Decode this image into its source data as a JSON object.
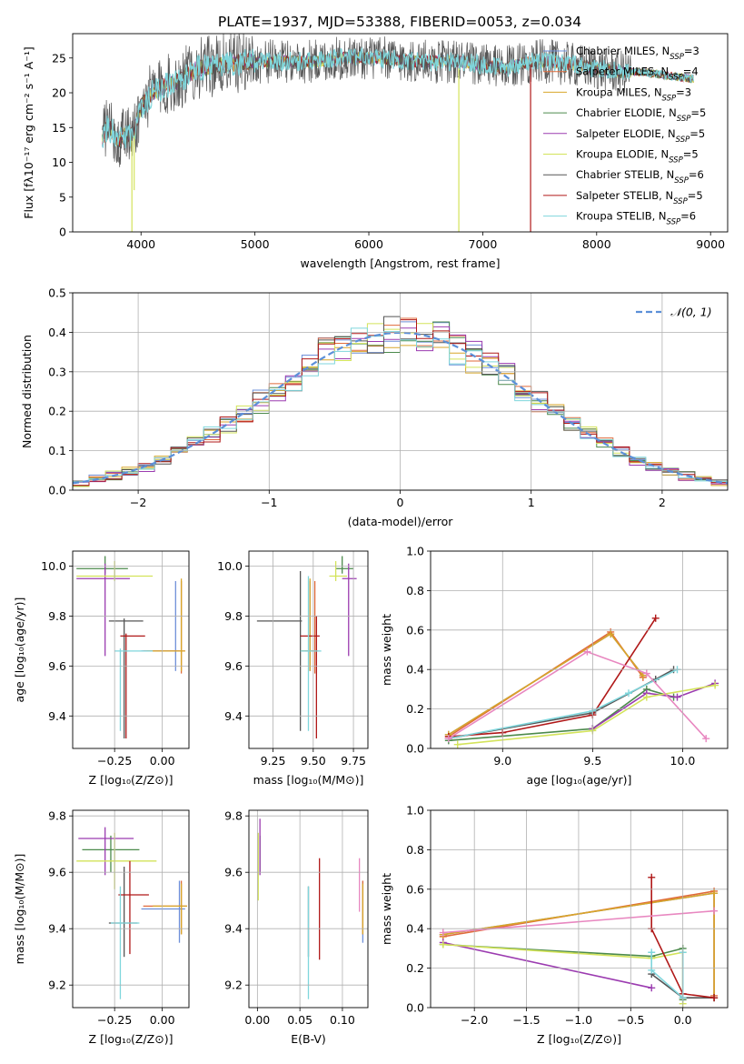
{
  "figure": {
    "title": "PLATE=1937, MJD=53388, FIBERID=0053, z=0.034"
  },
  "colors": {
    "Chabrier MILES": "#6e8fd8",
    "Salpeter MILES": "#e06a3a",
    "Kroupa MILES": "#d8a62a",
    "Chabrier ELODIE": "#4c8a4c",
    "Salpeter ELODIE": "#9b3bb0",
    "Kroupa ELODIE": "#d3e35a",
    "Chabrier STELIB": "#555555",
    "Salpeter STELIB": "#b01818",
    "Kroupa STELIB": "#7fd6dc",
    "gauss": "#5b8fd8",
    "grid": "#b0b0b0",
    "misc": "#e887c0"
  },
  "chart_data": [
    {
      "id": "spectrum",
      "type": "line",
      "title": "PLATE=1937, MJD=53388, FIBERID=0053, z=0.034",
      "xlabel": "wavelength [Angstrom, rest frame]",
      "ylabel": "Flux [fλ10⁻¹⁷ erg cm⁻² s⁻¹ A⁻¹]",
      "xlim": [
        3400,
        9150
      ],
      "ylim": [
        0,
        28.5
      ],
      "xticks": [
        4000,
        5000,
        6000,
        7000,
        8000,
        9000
      ],
      "yticks": [
        0,
        5,
        10,
        15,
        20,
        25
      ],
      "grid": false,
      "legend_position": "upper right",
      "series": [
        {
          "name": "Chabrier MILES, N_SSP=3"
        },
        {
          "name": "Salpeter MILES, N_SSP=4"
        },
        {
          "name": "Kroupa MILES, N_SSP=3"
        },
        {
          "name": "Chabrier ELODIE, N_SSP=5"
        },
        {
          "name": "Salpeter ELODIE, N_SSP=5"
        },
        {
          "name": "Kroupa ELODIE, N_SSP=5"
        },
        {
          "name": "Chabrier STELIB, N_SSP=6"
        },
        {
          "name": "Salpeter STELIB, N_SSP=5"
        },
        {
          "name": "Kroupa STELIB, N_SSP=6"
        }
      ],
      "continuum": {
        "x": [
          3660,
          3700,
          3750,
          3800,
          3850,
          3900,
          3950,
          4000,
          4100,
          4200,
          4300,
          4400,
          4500,
          4700,
          4900,
          5100,
          5300,
          5500,
          5800,
          6100,
          6400,
          6600,
          6800,
          7000,
          7200,
          7400,
          7600,
          7800,
          8000,
          8200,
          8400,
          8600,
          8850
        ],
        "y": [
          13.5,
          15,
          14.5,
          13,
          14,
          13.5,
          15,
          18,
          20,
          21,
          21.5,
          22.5,
          23.5,
          24,
          24.5,
          24.5,
          24.5,
          24.5,
          25,
          25,
          24.5,
          24.5,
          24.5,
          24,
          23.5,
          24.5,
          24.5,
          24,
          23.5,
          23,
          23,
          22.5,
          22
        ]
      },
      "spikes": [
        {
          "name": "Kroupa ELODIE",
          "x": 3920,
          "y": 0
        },
        {
          "name": "Kroupa ELODIE",
          "x": 6790,
          "y": 0
        },
        {
          "name": "Salpeter STELIB",
          "x": 7420,
          "y": 0
        },
        {
          "name": "Kroupa ELODIE",
          "x": 3940,
          "y": 6
        }
      ]
    },
    {
      "id": "residual-hist",
      "type": "step",
      "xlabel": "(data-model)/error",
      "ylabel": "Normed distribution",
      "xlim": [
        -2.5,
        2.5
      ],
      "ylim": [
        0,
        0.5
      ],
      "xticks": [
        -2,
        -1,
        0,
        1,
        2
      ],
      "yticks": [
        0.0,
        0.1,
        0.2,
        0.3,
        0.4,
        0.5
      ],
      "grid": true,
      "legend": [
        {
          "name": "𝒩(0, 1)",
          "style": "dashed"
        }
      ],
      "legend_position": "upper right",
      "bin_width": 0.125,
      "bin_start": -2.5
    },
    {
      "id": "age-vs-z",
      "type": "errorbar",
      "xlabel": "Z [log₁₀(Z/Z⊙)]",
      "ylabel": "age  [log₁₀(age/yr)]",
      "xlim": [
        -0.47,
        0.14
      ],
      "ylim": [
        9.27,
        10.06
      ],
      "xticks": [
        -0.25,
        0.0
      ],
      "yticks": [
        9.4,
        9.6,
        9.8,
        10.0
      ],
      "grid": true,
      "points": [
        {
          "name": "Chabrier MILES",
          "x": 0.07,
          "y": 9.66,
          "xerr": [
            0.18,
            0.02
          ],
          "yerr": [
            0.08,
            0.28
          ]
        },
        {
          "name": "Salpeter MILES",
          "x": 0.1,
          "y": 9.66,
          "xerr": [
            0.2,
            0.02
          ],
          "yerr": [
            0.09,
            0.28
          ]
        },
        {
          "name": "Kroupa MILES",
          "x": 0.1,
          "y": 9.66,
          "xerr": [
            0.18,
            0.02
          ],
          "yerr": [
            0.08,
            0.29
          ]
        },
        {
          "name": "Chabrier ELODIE",
          "x": -0.3,
          "y": 9.99,
          "xerr": [
            0.15,
            0.12
          ],
          "yerr": [
            0.02,
            0.05
          ]
        },
        {
          "name": "Salpeter ELODIE",
          "x": -0.3,
          "y": 9.95,
          "xerr": [
            0.15,
            0.13
          ],
          "yerr": [
            0.31,
            0.06
          ]
        },
        {
          "name": "Kroupa ELODIE",
          "x": -0.25,
          "y": 9.96,
          "xerr": [
            0.2,
            0.2
          ],
          "yerr": [
            0.02,
            0.06
          ]
        },
        {
          "name": "Chabrier STELIB",
          "x": -0.2,
          "y": 9.78,
          "xerr": [
            0.08,
            0.1
          ],
          "yerr": [
            0.47,
            0.01
          ]
        },
        {
          "name": "Salpeter STELIB",
          "x": -0.19,
          "y": 9.72,
          "xerr": [
            0.03,
            0.1
          ],
          "yerr": [
            0.41,
            0.01
          ]
        },
        {
          "name": "Kroupa STELIB",
          "x": -0.22,
          "y": 9.66,
          "xerr": [
            0.03,
            0.17
          ],
          "yerr": [
            0.32,
            0.01
          ]
        }
      ]
    },
    {
      "id": "age-vs-mass",
      "type": "errorbar",
      "xlabel": "mass [log₁₀(M/M⊙)]",
      "xlim": [
        9.1,
        9.84
      ],
      "ylim": [
        9.27,
        10.06
      ],
      "xticks": [
        9.25,
        9.5,
        9.75
      ],
      "yticks": [
        9.4,
        9.6,
        9.8,
        10.0
      ],
      "grid": true,
      "points": [
        {
          "name": "Chabrier MILES",
          "x": 9.48,
          "y": 9.66,
          "xerr": [
            0.06,
            0.02
          ],
          "yerr": [
            0.08,
            0.28
          ]
        },
        {
          "name": "Salpeter MILES",
          "x": 9.51,
          "y": 9.66,
          "xerr": [
            0.06,
            0.02
          ],
          "yerr": [
            0.09,
            0.28
          ]
        },
        {
          "name": "Kroupa MILES",
          "x": 9.48,
          "y": 9.66,
          "xerr": [
            0.06,
            0.02
          ],
          "yerr": [
            0.08,
            0.29
          ]
        },
        {
          "name": "Chabrier ELODIE",
          "x": 9.68,
          "y": 9.99,
          "xerr": [
            0.04,
            0.07
          ],
          "yerr": [
            0.02,
            0.05
          ]
        },
        {
          "name": "Salpeter ELODIE",
          "x": 9.72,
          "y": 9.95,
          "xerr": [
            0.04,
            0.05
          ],
          "yerr": [
            0.31,
            0.06
          ]
        },
        {
          "name": "Kroupa ELODIE",
          "x": 9.64,
          "y": 9.96,
          "xerr": [
            0.04,
            0.07
          ],
          "yerr": [
            0.02,
            0.06
          ]
        },
        {
          "name": "Chabrier STELIB",
          "x": 9.42,
          "y": 9.78,
          "xerr": [
            0.27,
            0.01
          ],
          "yerr": [
            0.44,
            0.2
          ]
        },
        {
          "name": "Salpeter STELIB",
          "x": 9.52,
          "y": 9.72,
          "xerr": [
            0.1,
            0.02
          ],
          "yerr": [
            0.41,
            0.08
          ]
        },
        {
          "name": "Kroupa STELIB",
          "x": 9.47,
          "y": 9.66,
          "xerr": [
            0.05,
            0.08
          ],
          "yerr": [
            0.32,
            0.3
          ]
        }
      ]
    },
    {
      "id": "massweight-vs-age",
      "type": "line",
      "xlabel": "age  [log₁₀(age/yr)]",
      "ylabel": "mass weight",
      "xlim": [
        8.6,
        10.25
      ],
      "ylim": [
        0,
        1
      ],
      "xticks": [
        9.0,
        9.5,
        10.0
      ],
      "yticks": [
        0.0,
        0.2,
        0.4,
        0.6,
        0.8,
        1.0
      ],
      "grid": true,
      "series": [
        {
          "name": "Chabrier MILES",
          "x": [
            8.7,
            9.6,
            9.78
          ],
          "y": [
            0.07,
            0.58,
            0.37
          ]
        },
        {
          "name": "Salpeter MILES",
          "x": [
            8.7,
            9.6,
            9.78
          ],
          "y": [
            0.06,
            0.59,
            0.36
          ]
        },
        {
          "name": "Kroupa MILES",
          "x": [
            8.7,
            9.6,
            9.78
          ],
          "y": [
            0.07,
            0.58,
            0.37
          ]
        },
        {
          "name": "Chabrier ELODIE",
          "x": [
            8.7,
            9.5,
            9.8,
            9.95
          ],
          "y": [
            0.04,
            0.1,
            0.3,
            0.26
          ]
        },
        {
          "name": "Salpeter ELODIE",
          "x": [
            9.5,
            9.8,
            9.97,
            10.18
          ],
          "y": [
            0.1,
            0.28,
            0.26,
            0.33
          ]
        },
        {
          "name": "Kroupa ELODIE",
          "x": [
            8.75,
            9.5,
            9.8,
            10.18
          ],
          "y": [
            0.02,
            0.09,
            0.26,
            0.32
          ]
        },
        {
          "name": "Chabrier STELIB",
          "x": [
            8.7,
            9.5,
            9.85,
            9.95
          ],
          "y": [
            0.05,
            0.18,
            0.35,
            0.4
          ]
        },
        {
          "name": "Salpeter STELIB",
          "x": [
            8.7,
            9.0,
            9.5,
            9.85
          ],
          "y": [
            0.06,
            0.08,
            0.17,
            0.66
          ]
        },
        {
          "name": "Kroupa STELIB",
          "x": [
            8.7,
            9.5,
            9.7,
            9.97
          ],
          "y": [
            0.05,
            0.19,
            0.28,
            0.4
          ]
        },
        {
          "name": "misc",
          "x": [
            8.7,
            9.47,
            9.8,
            10.13
          ],
          "y": [
            0.05,
            0.49,
            0.38,
            0.05
          ]
        }
      ]
    },
    {
      "id": "mass-vs-z",
      "type": "errorbar",
      "xlabel": "Z [log₁₀(Z/Z⊙)]",
      "ylabel": "mass [log₁₀(M/M⊙)]",
      "xlim": [
        -0.47,
        0.14
      ],
      "ylim": [
        9.12,
        9.82
      ],
      "xticks": [
        -0.25,
        0.0
      ],
      "yticks": [
        9.2,
        9.4,
        9.6,
        9.8
      ],
      "grid": true,
      "points": [
        {
          "name": "Chabrier MILES",
          "x": 0.09,
          "y": 9.47,
          "xerr": [
            0.2,
            0.03
          ],
          "yerr": [
            0.12,
            0.1
          ]
        },
        {
          "name": "Salpeter MILES",
          "x": 0.1,
          "y": 9.48,
          "xerr": [
            0.2,
            0.03
          ],
          "yerr": [
            0.1,
            0.09
          ]
        },
        {
          "name": "Kroupa MILES",
          "x": 0.1,
          "y": 9.48,
          "xerr": [
            0.15,
            0.03
          ],
          "yerr": [
            0.1,
            0.08
          ]
        },
        {
          "name": "Chabrier ELODIE",
          "x": -0.27,
          "y": 9.68,
          "xerr": [
            0.15,
            0.15
          ],
          "yerr": [
            0.08,
            0.05
          ]
        },
        {
          "name": "Salpeter ELODIE",
          "x": -0.3,
          "y": 9.72,
          "xerr": [
            0.14,
            0.15
          ],
          "yerr": [
            0.13,
            0.04
          ]
        },
        {
          "name": "Kroupa ELODIE",
          "x": -0.25,
          "y": 9.64,
          "xerr": [
            0.2,
            0.22
          ],
          "yerr": [
            0.1,
            0.1
          ]
        },
        {
          "name": "Chabrier STELIB",
          "x": -0.2,
          "y": 9.42,
          "xerr": [
            0.08,
            0.07
          ],
          "yerr": [
            0.12,
            0.2
          ]
        },
        {
          "name": "Salpeter STELIB",
          "x": -0.17,
          "y": 9.52,
          "xerr": [
            0.06,
            0.1
          ],
          "yerr": [
            0.21,
            0.12
          ]
        },
        {
          "name": "Kroupa STELIB",
          "x": -0.22,
          "y": 9.42,
          "xerr": [
            0.05,
            0.1
          ],
          "yerr": [
            0.27,
            0.13
          ]
        }
      ]
    },
    {
      "id": "mass-vs-ebv",
      "type": "errorbar",
      "xlabel": "E(B-V)",
      "xlim": [
        -0.01,
        0.13
      ],
      "ylim": [
        9.12,
        9.82
      ],
      "xticks": [
        0.0,
        0.05,
        0.1
      ],
      "yticks": [
        9.2,
        9.4,
        9.6,
        9.8
      ],
      "grid": true,
      "points": [
        {
          "name": "Chabrier MILES",
          "x": 0.124,
          "y": 9.47,
          "xerr": [
            0,
            0
          ],
          "yerr": [
            0.12,
            0.1
          ]
        },
        {
          "name": "Salpeter MILES",
          "x": 0.124,
          "y": 9.48,
          "xerr": [
            0,
            0
          ],
          "yerr": [
            0.1,
            0.09
          ]
        },
        {
          "name": "Kroupa MILES",
          "x": 0.124,
          "y": 9.48,
          "xerr": [
            0,
            0
          ],
          "yerr": [
            0.1,
            0.08
          ]
        },
        {
          "name": "Chabrier ELODIE",
          "x": 0.003,
          "y": 9.68,
          "xerr": [
            0,
            0
          ],
          "yerr": [
            0.08,
            0.05
          ]
        },
        {
          "name": "Salpeter ELODIE",
          "x": 0.003,
          "y": 9.72,
          "xerr": [
            0,
            0
          ],
          "yerr": [
            0.13,
            0.07
          ]
        },
        {
          "name": "Kroupa ELODIE",
          "x": 0.001,
          "y": 9.64,
          "xerr": [
            0,
            0
          ],
          "yerr": [
            0.14,
            0.1
          ]
        },
        {
          "name": "Chabrier STELIB",
          "x": 0.06,
          "y": 9.42,
          "xerr": [
            0,
            0
          ],
          "yerr": [
            0.12,
            0.13
          ]
        },
        {
          "name": "Salpeter STELIB",
          "x": 0.073,
          "y": 9.52,
          "xerr": [
            0,
            0
          ],
          "yerr": [
            0.23,
            0.13
          ]
        },
        {
          "name": "Kroupa STELIB",
          "x": 0.06,
          "y": 9.42,
          "xerr": [
            0,
            0
          ],
          "yerr": [
            0.27,
            0.13
          ]
        },
        {
          "name": "misc",
          "x": 0.12,
          "y": 9.55,
          "xerr": [
            0,
            0
          ],
          "yerr": [
            0.09,
            0.1
          ]
        }
      ]
    },
    {
      "id": "massweight-vs-z",
      "type": "line",
      "xlabel": "Z [log₁₀(Z/Z⊙)]",
      "ylabel": "mass weight",
      "xlim": [
        -2.42,
        0.43
      ],
      "ylim": [
        0,
        1
      ],
      "xticks": [
        -2.0,
        -1.5,
        -1.0,
        -0.5,
        0.0
      ],
      "yticks": [
        0.0,
        0.2,
        0.4,
        0.6,
        0.8,
        1.0
      ],
      "grid": true,
      "series": [
        {
          "name": "Chabrier MILES",
          "x": [
            -2.3,
            0.3,
            0.3
          ],
          "y": [
            0.37,
            0.58,
            0.05
          ]
        },
        {
          "name": "Salpeter MILES",
          "x": [
            -2.3,
            0.3,
            0.3
          ],
          "y": [
            0.36,
            0.59,
            0.06
          ]
        },
        {
          "name": "Kroupa MILES",
          "x": [
            -2.3,
            0.3,
            0.3
          ],
          "y": [
            0.37,
            0.58,
            0.05
          ]
        },
        {
          "name": "Chabrier ELODIE",
          "x": [
            -2.3,
            -0.3,
            0.0,
            0.0
          ],
          "y": [
            0.32,
            0.26,
            0.3,
            0.04
          ]
        },
        {
          "name": "Salpeter ELODIE",
          "x": [
            -2.3,
            -0.3
          ],
          "y": [
            0.33,
            0.1
          ]
        },
        {
          "name": "Kroupa ELODIE",
          "x": [
            -2.3,
            -0.3,
            0.0,
            0.0
          ],
          "y": [
            0.32,
            0.25,
            0.28,
            0.02
          ]
        },
        {
          "name": "Chabrier STELIB",
          "x": [
            -0.3,
            0.0,
            0.3
          ],
          "y": [
            0.17,
            0.05,
            0.05
          ]
        },
        {
          "name": "Salpeter STELIB",
          "x": [
            -0.3,
            -0.3,
            0.0,
            0.3
          ],
          "y": [
            0.66,
            0.4,
            0.07,
            0.05
          ]
        },
        {
          "name": "Kroupa STELIB",
          "x": [
            -0.3,
            -0.3,
            0.0,
            0.0
          ],
          "y": [
            0.28,
            0.19,
            0.05,
            0.28
          ]
        },
        {
          "name": "misc",
          "x": [
            -2.3,
            0.3
          ],
          "y": [
            0.38,
            0.49
          ]
        }
      ]
    }
  ]
}
